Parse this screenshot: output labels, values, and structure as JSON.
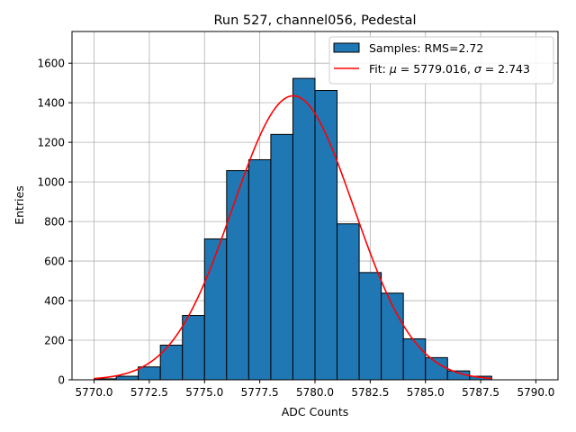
{
  "chart_data": {
    "type": "bar",
    "title": "Run 527, channel056, Pedestal",
    "xlabel": "ADC Counts",
    "ylabel": "Entries",
    "xlim": [
      5769.0,
      5791.0
    ],
    "ylim": [
      0,
      1760
    ],
    "xticks": [
      5770.0,
      5772.5,
      5775.0,
      5777.5,
      5780.0,
      5782.5,
      5785.0,
      5787.5,
      5790.0
    ],
    "xtick_labels": [
      "5770.0",
      "5772.5",
      "5775.0",
      "5777.5",
      "5780.0",
      "5782.5",
      "5785.0",
      "5787.5",
      "5790.0"
    ],
    "yticks": [
      0,
      200,
      400,
      600,
      800,
      1000,
      1200,
      1400,
      1600
    ],
    "ytick_labels": [
      "0",
      "200",
      "400",
      "600",
      "800",
      "1000",
      "1200",
      "1400",
      "1600"
    ],
    "grid": true,
    "legend_position": "top-right",
    "bin_edges": [
      5770,
      5771,
      5772,
      5773,
      5774,
      5775,
      5776,
      5777,
      5778,
      5779,
      5780,
      5781,
      5782,
      5783,
      5784,
      5785,
      5786,
      5787,
      5788,
      5789,
      5790
    ],
    "series": [
      {
        "name": "Samples: RMS=2.72",
        "kind": "histogram",
        "color": "#1f77b4",
        "edgecolor": "#000000",
        "values": [
          5,
          18,
          65,
          175,
          325,
          712,
          1057,
          1112,
          1240,
          1523,
          1462,
          788,
          542,
          438,
          207,
          112,
          45,
          18,
          0,
          0
        ]
      },
      {
        "name": "Fit: μ = 5779.016, σ = 2.743",
        "name_parts": {
          "prefix": "Fit: ",
          "mu_sym": "μ",
          "mu_text": " = 5779.016, ",
          "sigma_sym": "σ",
          "sigma_text": " = 2.743"
        },
        "kind": "gaussian-fit",
        "color": "#ff0000",
        "mu": 5779.016,
        "sigma": 2.743,
        "amplitude": 1435,
        "x_range": [
          5770,
          5788
        ]
      }
    ]
  }
}
